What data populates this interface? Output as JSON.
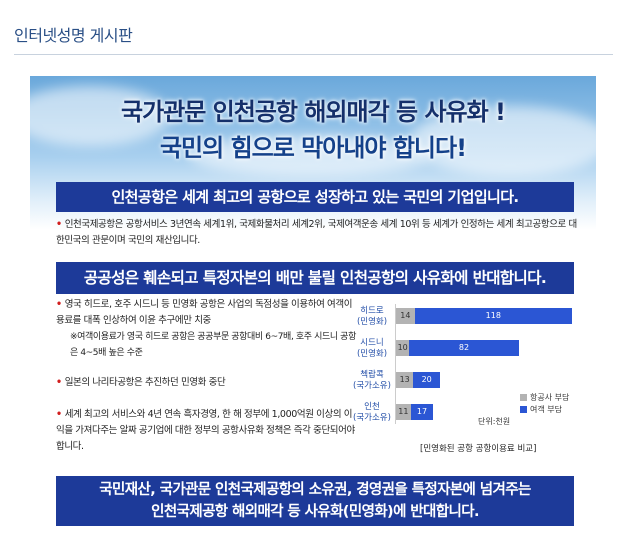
{
  "header": {
    "title": "인터넷성명  게시판"
  },
  "poster": {
    "headline_1": "국가관문 인천공항 해외매각 등 사유화 !",
    "headline_2": "국민의 힘으로 막아내야 합니다!",
    "band_1": "인천공항은 세계 최고의 공항으로 성장하고 있는 국민의 기업입니다.",
    "bullet_1": "인천국제공항은 공항서비스 3년연속 세계1위, 국제화물처리 세계2위, 국제여객운송 세계 10위 등 세계가 인정하는 세계 최고공항으로 대한민국의 관문이며 국민의 재산입니다.",
    "band_2": "공공성은 훼손되고 특정자본의 배만 불릴 인천공항의 사유화에 반대합니다.",
    "bullet_2": "영국 히드로, 호주 시드니 등 민영화 공항은 사업의 독점성을 이용하여 여객이용료를 대폭 인상하여 이윤 추구에만 치중",
    "bullet_2_sub": "※여객이용료가 영국 히드로 공항은 공공부문 공항대비 6~7배, 호주 시드니 공항은 4~5배 높은 수준",
    "bullet_3": "일본의 나리타공항은 추진하던 민영화 중단",
    "bullet_4": "세계 최고의 서비스와 4년 연속 흑자경영, 한 해 정부에 1,000억원 이상의 이익을 가져다주는 알짜 공기업에 대한 정부의 공항사유화 정책은 즉각 중단되어야 합니다.",
    "band_3_line1": "국민재산, 국가관문 인천국제공항의 소유권, 경영권을 특정자본에 넘겨주는",
    "band_3_line2": "인천국제공항 해외매각 등 사유화(민영화)에 반대합니다."
  },
  "chart_data": {
    "type": "bar",
    "orientation": "horizontal",
    "stacked": true,
    "categories": [
      "히드로\n(민영화)",
      "시드니\n(민영화)",
      "첵랍콕\n(국가소유)",
      "인천\n(국가소유)"
    ],
    "series": [
      {
        "name": "항공사 부담",
        "values": [
          14,
          10,
          13,
          11
        ],
        "color": "#b3b3b3"
      },
      {
        "name": "여객 부담",
        "values": [
          118,
          82,
          20,
          17
        ],
        "color": "#2b56d4"
      }
    ],
    "unit_label": "단위:천원",
    "caption": "[민영화된 공항 공항이용료 비교]"
  },
  "colors": {
    "band": "#1d3a99",
    "bullet_dot": "#d21e1e",
    "header_title": "#2a4f86"
  }
}
